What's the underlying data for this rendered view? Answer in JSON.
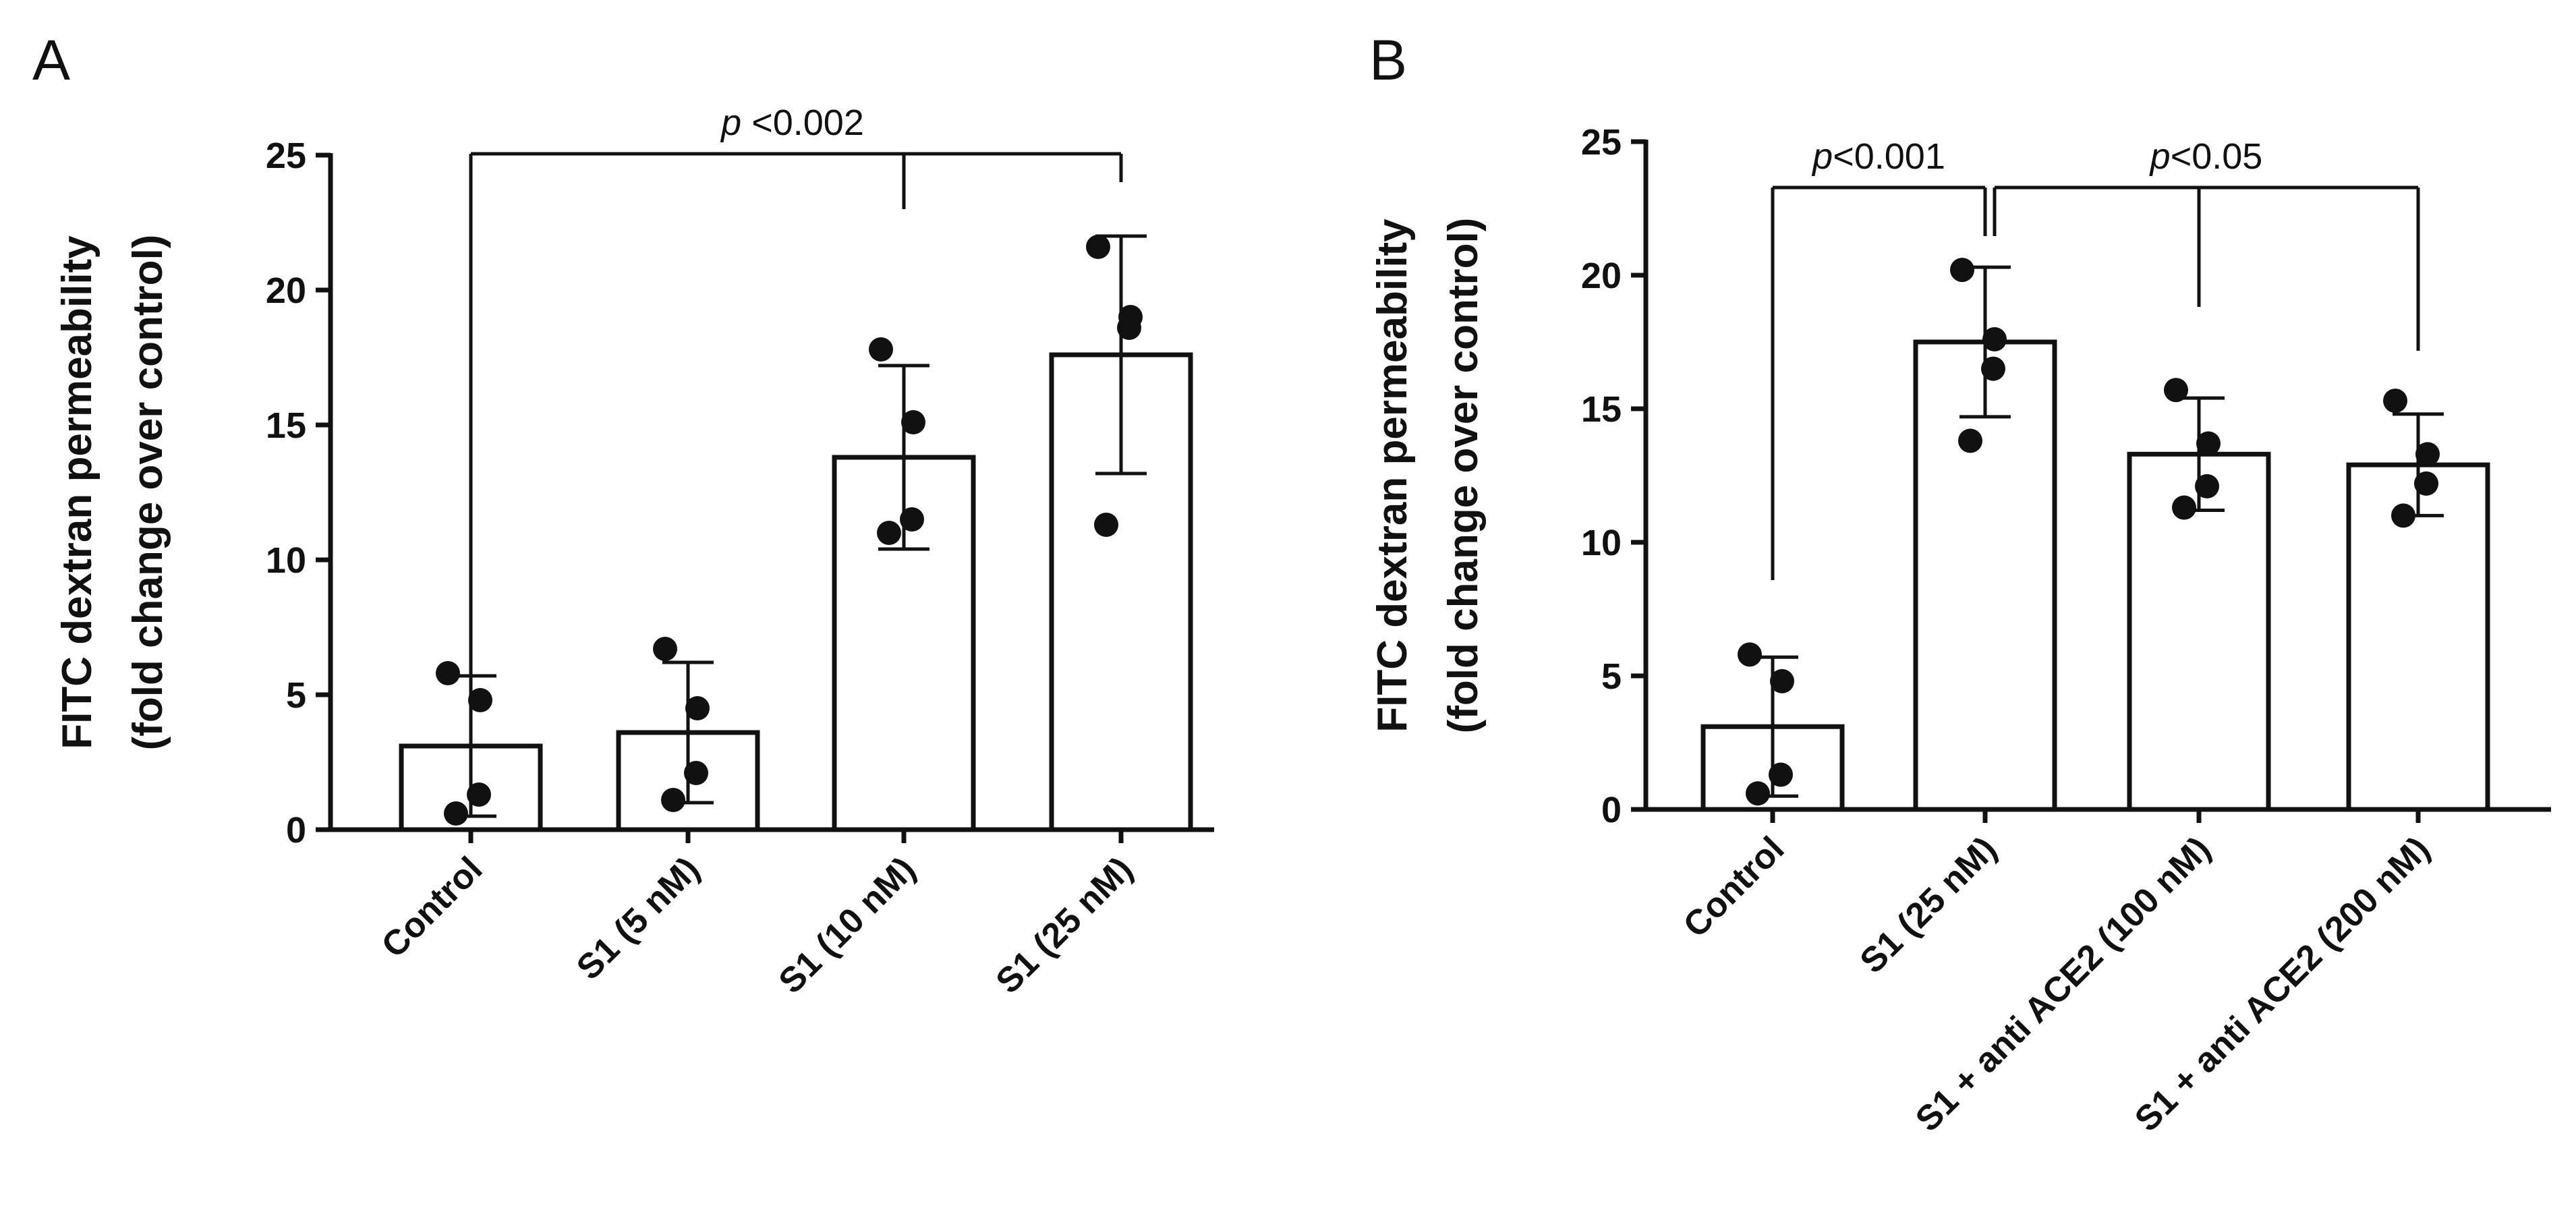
{
  "chart_data": [
    {
      "type": "bar",
      "panel_label": "A",
      "ylabel_lines": [
        "FITC dextran permeability",
        "(fold change over control)"
      ],
      "ylim": [
        0,
        25
      ],
      "yticks": [
        0,
        5,
        10,
        15,
        20,
        25
      ],
      "categories": [
        "Control",
        "S1 (5 nM)",
        "S1 (10 nM)",
        "S1 (25 nM)"
      ],
      "values": [
        3.1,
        3.6,
        13.8,
        17.6
      ],
      "errors": [
        2.6,
        2.6,
        3.4,
        4.4
      ],
      "points": [
        [
          5.8,
          4.8,
          1.3,
          0.6
        ],
        [
          6.7,
          4.5,
          2.1,
          1.1
        ],
        [
          17.8,
          15.1,
          11.5,
          11.0
        ],
        [
          21.6,
          19.0,
          18.6,
          11.3
        ]
      ],
      "annotations": [
        {
          "p_prefix": "p",
          "text": " <0.002",
          "from": [
            0
          ],
          "to": [
            2,
            3
          ]
        }
      ]
    },
    {
      "type": "bar",
      "panel_label": "B",
      "ylabel_lines": [
        "FITC dextran permeability",
        "(fold change over control)"
      ],
      "ylim": [
        0,
        25
      ],
      "yticks": [
        0,
        5,
        10,
        15,
        20,
        25
      ],
      "categories": [
        "Control",
        "S1 (25 nM)",
        "S1 + anti ACE2 (100 nM)",
        "S1 + anti ACE2 (200 nM)"
      ],
      "values": [
        3.1,
        17.5,
        13.3,
        12.9
      ],
      "errors": [
        2.6,
        2.8,
        2.1,
        1.9
      ],
      "points": [
        [
          5.8,
          4.8,
          1.3,
          0.6
        ],
        [
          20.2,
          17.6,
          16.5,
          13.8
        ],
        [
          15.7,
          13.7,
          12.1,
          11.3
        ],
        [
          15.3,
          13.3,
          12.2,
          11.0
        ]
      ],
      "annotations": [
        {
          "p_prefix": "p",
          "text": "<0.001",
          "from": [
            0
          ],
          "to": [
            1
          ]
        },
        {
          "p_prefix": "p",
          "text": "<0.05",
          "from": [
            1
          ],
          "to": [
            2,
            3
          ]
        }
      ]
    }
  ]
}
